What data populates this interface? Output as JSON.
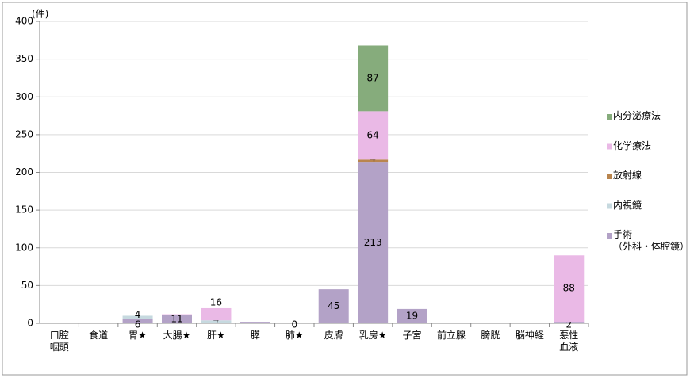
{
  "chart_data": {
    "type": "stacked-bar",
    "y_unit_label": "(件)",
    "categories": [
      "口腔\n咽頭",
      "食道",
      "胃★",
      "大腸★",
      "肝★",
      "膵",
      "肺★",
      "皮膚",
      "乳房★",
      "子宮",
      "前立腺",
      "膀胱",
      "脳神経",
      "悪性\n血液"
    ],
    "series": [
      {
        "name": "手術\n（外科・体腔鏡）",
        "color": "#b3a2c7",
        "values": [
          null,
          null,
          6,
          11,
          null,
          2,
          0,
          45,
          213,
          19,
          1,
          null,
          null,
          2
        ],
        "value_labels": [
          null,
          null,
          6,
          11,
          null,
          null,
          0,
          45,
          213,
          19,
          null,
          null,
          null,
          2
        ]
      },
      {
        "name": "内視鏡",
        "color": "#c6d9df",
        "values": [
          null,
          null,
          4,
          null,
          4,
          null,
          null,
          null,
          null,
          null,
          null,
          null,
          null,
          null
        ],
        "value_labels": [
          null,
          null,
          4,
          null,
          4,
          null,
          null,
          null,
          null,
          null,
          null,
          null,
          null,
          null
        ]
      },
      {
        "name": "放射線",
        "color": "#b9854e",
        "values": [
          null,
          null,
          null,
          null,
          null,
          null,
          null,
          null,
          4,
          null,
          null,
          null,
          null,
          null
        ],
        "value_labels": [
          null,
          null,
          null,
          null,
          null,
          null,
          null,
          null,
          4,
          null,
          null,
          null,
          null,
          null
        ]
      },
      {
        "name": "化学療法",
        "color": "#eab9e6",
        "values": [
          null,
          null,
          null,
          1,
          16,
          null,
          null,
          null,
          64,
          null,
          null,
          null,
          null,
          88
        ],
        "value_labels": [
          null,
          null,
          null,
          null,
          16,
          null,
          null,
          null,
          64,
          null,
          null,
          null,
          null,
          88
        ]
      },
      {
        "name": "内分泌療法",
        "color": "#86ac7c",
        "values": [
          null,
          null,
          null,
          null,
          null,
          null,
          null,
          null,
          87,
          null,
          null,
          null,
          null,
          null
        ],
        "value_labels": [
          null,
          null,
          null,
          null,
          null,
          null,
          null,
          null,
          87,
          null,
          null,
          null,
          null,
          null
        ]
      }
    ],
    "ylim": [
      0,
      400
    ],
    "yticks": [
      0,
      50,
      100,
      150,
      200,
      250,
      300,
      350,
      400
    ],
    "grid": true,
    "legend": "right"
  }
}
